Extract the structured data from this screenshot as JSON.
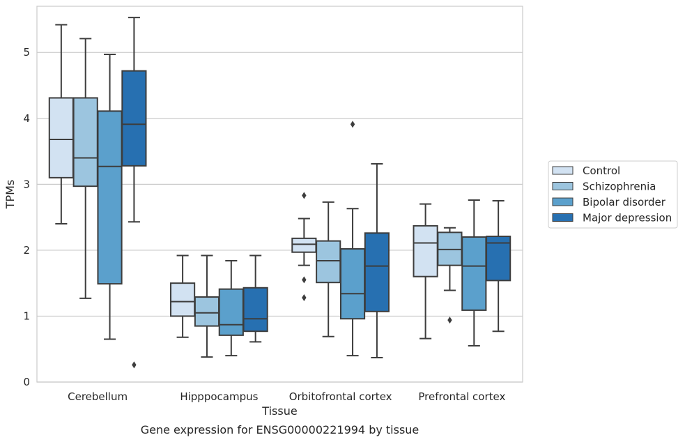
{
  "chart_data": {
    "type": "boxplot",
    "xlabel": "Tissue",
    "ylabel": "TPMs",
    "caption": "Gene expression for ENSG00000221994 by tissue",
    "ylim": [
      0,
      5.7
    ],
    "yticks": [
      0,
      1,
      2,
      3,
      4,
      5
    ],
    "grid": true,
    "legend_position": "right",
    "categories": [
      "Cerebellum",
      "Hipppocampus",
      "Orbitofrontal cortex",
      "Prefrontal cortex"
    ],
    "series": [
      {
        "name": "Control",
        "color": "#d2e2f2",
        "boxes": [
          {
            "whisker_low": 2.4,
            "q1": 3.1,
            "median": 3.68,
            "q3": 4.31,
            "whisker_high": 5.42,
            "outliers": []
          },
          {
            "whisker_low": 0.68,
            "q1": 1.0,
            "median": 1.22,
            "q3": 1.5,
            "whisker_high": 1.92,
            "outliers": []
          },
          {
            "whisker_low": 1.77,
            "q1": 1.97,
            "median": 2.09,
            "q3": 2.18,
            "whisker_high": 2.48,
            "outliers": [
              2.83,
              1.55,
              1.28
            ]
          },
          {
            "whisker_low": 0.66,
            "q1": 1.6,
            "median": 2.11,
            "q3": 2.37,
            "whisker_high": 2.7,
            "outliers": []
          }
        ]
      },
      {
        "name": "Schizophrenia",
        "color": "#9cc5df",
        "boxes": [
          {
            "whisker_low": 1.27,
            "q1": 2.97,
            "median": 3.4,
            "q3": 4.31,
            "whisker_high": 5.21,
            "outliers": []
          },
          {
            "whisker_low": 0.38,
            "q1": 0.85,
            "median": 1.05,
            "q3": 1.29,
            "whisker_high": 1.92,
            "outliers": []
          },
          {
            "whisker_low": 0.69,
            "q1": 1.51,
            "median": 1.84,
            "q3": 2.14,
            "whisker_high": 2.73,
            "outliers": []
          },
          {
            "whisker_low": 1.39,
            "q1": 1.77,
            "median": 2.01,
            "q3": 2.27,
            "whisker_high": 2.34,
            "outliers": [
              0.94
            ]
          }
        ]
      },
      {
        "name": "Bipolar disorder",
        "color": "#5ba0cc",
        "boxes": [
          {
            "whisker_low": 0.65,
            "q1": 1.49,
            "median": 3.27,
            "q3": 4.11,
            "whisker_high": 4.97,
            "outliers": []
          },
          {
            "whisker_low": 0.4,
            "q1": 0.71,
            "median": 0.87,
            "q3": 1.41,
            "whisker_high": 1.84,
            "outliers": []
          },
          {
            "whisker_low": 0.4,
            "q1": 0.96,
            "median": 1.34,
            "q3": 2.02,
            "whisker_high": 2.63,
            "outliers": [
              3.91
            ]
          },
          {
            "whisker_low": 0.55,
            "q1": 1.09,
            "median": 1.76,
            "q3": 2.2,
            "whisker_high": 2.76,
            "outliers": []
          }
        ]
      },
      {
        "name": "Major depression",
        "color": "#2770b1",
        "boxes": [
          {
            "whisker_low": 2.43,
            "q1": 3.28,
            "median": 3.91,
            "q3": 4.72,
            "whisker_high": 5.53,
            "outliers": [
              0.26
            ]
          },
          {
            "whisker_low": 0.61,
            "q1": 0.77,
            "median": 0.96,
            "q3": 1.43,
            "whisker_high": 1.92,
            "outliers": []
          },
          {
            "whisker_low": 0.37,
            "q1": 1.07,
            "median": 1.76,
            "q3": 2.26,
            "whisker_high": 3.31,
            "outliers": []
          },
          {
            "whisker_low": 0.77,
            "q1": 1.54,
            "median": 2.11,
            "q3": 2.21,
            "whisker_high": 2.75,
            "outliers": []
          }
        ]
      }
    ]
  }
}
